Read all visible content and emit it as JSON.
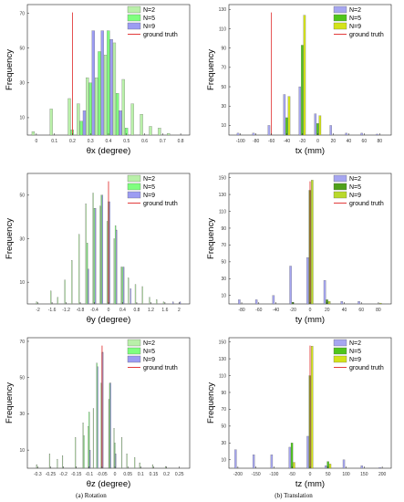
{
  "captions": {
    "left": "(a) Rotation",
    "right": "(b) Translation"
  },
  "chart_data": [
    {
      "type": "bar",
      "xlabel": "θx (degree)",
      "ylabel": "Frequency",
      "xlim": [
        -0.05,
        0.85
      ],
      "ylim": [
        0,
        75
      ],
      "xticks": [
        0,
        0.1,
        0.2,
        0.3,
        0.4,
        0.5,
        0.6,
        0.7,
        0.8
      ],
      "xtick_labels": [
        "0",
        "0.1",
        "0.2",
        "0.3",
        "0.4",
        "0.5",
        "0.6",
        "0.7",
        "0.8"
      ],
      "yticks": [
        10,
        30,
        50,
        70
      ],
      "ytick_labels": [
        "10",
        "30",
        "50",
        "70"
      ],
      "bin_width": 0.05,
      "ground_truth": 0.2,
      "ground_truth_label": "ground truth",
      "series": [
        {
          "name": "N=2",
          "color": "#b9f0a9",
          "x": [
            0,
            0.1,
            0.2,
            0.25,
            0.3,
            0.35,
            0.4,
            0.45,
            0.5,
            0.55,
            0.6,
            0.65,
            0.7,
            0.75,
            0.8
          ],
          "values": [
            2,
            15,
            21,
            18,
            33,
            33,
            46,
            53,
            32,
            18,
            12,
            5,
            4,
            1,
            0
          ]
        },
        {
          "name": "N=5",
          "color": "#7fff7f",
          "x": [
            0.2,
            0.25,
            0.3,
            0.35,
            0.4,
            0.45,
            0.5
          ],
          "values": [
            3,
            8,
            30,
            48,
            60,
            24,
            4
          ]
        },
        {
          "name": "N=9",
          "color": "#9c9cf2",
          "x": [
            0.25,
            0.3,
            0.35,
            0.4,
            0.45
          ],
          "values": [
            14,
            60,
            60,
            55,
            14
          ]
        }
      ]
    },
    {
      "type": "bar",
      "xlabel": "tx  (mm)",
      "ylabel": "Frequency",
      "xlim": [
        -115,
        95
      ],
      "ylim": [
        0,
        135
      ],
      "xticks": [
        -100,
        -80,
        -60,
        -40,
        -20,
        0,
        20,
        40,
        60,
        80
      ],
      "xtick_labels": [
        "-100",
        "-80",
        "-60",
        "-40",
        "-20",
        "0",
        "20",
        "40",
        "60",
        "80"
      ],
      "yticks": [
        10,
        30,
        50,
        70,
        90,
        110,
        130
      ],
      "ytick_labels": [
        "10",
        "30",
        "50",
        "70",
        "90",
        "110",
        "130"
      ],
      "bin_width": 9,
      "ground_truth": -60,
      "ground_truth_label": "ground truth",
      "series": [
        {
          "name": "N=2",
          "color": "#a6a6f0",
          "x": [
            -100,
            -80,
            -60,
            -40,
            -20,
            0,
            20,
            40,
            60,
            80
          ],
          "values": [
            2,
            2,
            10,
            42,
            50,
            22,
            10,
            2,
            2,
            1
          ]
        },
        {
          "name": "N=5",
          "color": "#4fc51c",
          "x": [
            -40,
            -20,
            0
          ],
          "values": [
            18,
            93,
            12
          ]
        },
        {
          "name": "N=9",
          "color": "#d4e31a",
          "x": [
            -40,
            -20,
            0
          ],
          "values": [
            40,
            124,
            20
          ]
        }
      ]
    },
    {
      "type": "bar",
      "xlabel": "θy (degree)",
      "ylabel": "Frequency",
      "xlim": [
        -2.3,
        2.3
      ],
      "ylim": [
        0,
        60
      ],
      "xticks": [
        -2,
        -1.6,
        -1.2,
        -0.8,
        -0.4,
        0,
        0.4,
        0.8,
        1.2,
        1.6,
        2
      ],
      "xtick_labels": [
        "-2",
        "-1.6",
        "-1.2",
        "-0.8",
        "-0.4",
        "0",
        "0.4",
        "0.8",
        "1.2",
        "1.6",
        "2"
      ],
      "yticks": [
        10,
        30,
        50
      ],
      "ytick_labels": [
        "10",
        "30",
        "50"
      ],
      "bin_width": 0.1,
      "ground_truth": 0,
      "ground_truth_label": "ground truth",
      "series": [
        {
          "name": "N=2",
          "color": "#b9f0a9",
          "x": [
            -2,
            -1.6,
            -1.4,
            -1.2,
            -1.0,
            -0.8,
            -0.6,
            -0.4,
            -0.2,
            0,
            0.2,
            0.4,
            0.6,
            0.8,
            1.0,
            1.2,
            1.4,
            1.6
          ],
          "values": [
            1,
            6,
            3,
            11,
            20,
            32,
            46,
            51,
            45,
            38,
            30,
            17,
            12,
            9,
            8,
            3,
            2,
            1
          ]
        },
        {
          "name": "N=5",
          "color": "#7fff7f",
          "x": [
            -0.6,
            -0.4,
            -0.2,
            0,
            0.2,
            0.4
          ],
          "values": [
            28,
            44,
            50,
            47,
            36,
            17
          ]
        },
        {
          "name": "N=9",
          "color": "#9c9cf2",
          "x": [
            -0.6,
            -0.4,
            -0.2,
            0,
            0.2,
            0.4,
            0.6,
            1.8,
            2.0
          ],
          "values": [
            16,
            44,
            50,
            47,
            34,
            17,
            7,
            1,
            1
          ]
        }
      ]
    },
    {
      "type": "bar",
      "xlabel": "ty  (mm)",
      "ylabel": "Frequency",
      "xlim": [
        -95,
        95
      ],
      "ylim": [
        0,
        155
      ],
      "xticks": [
        -80,
        -60,
        -40,
        -20,
        0,
        20,
        40,
        60,
        80
      ],
      "xtick_labels": [
        "-80",
        "-60",
        "-40",
        "-20",
        "0",
        "20",
        "40",
        "60",
        "80"
      ],
      "yticks": [
        10,
        30,
        50,
        70,
        90,
        110,
        130,
        150
      ],
      "ytick_labels": [
        "10",
        "30",
        "50",
        "70",
        "90",
        "110",
        "130",
        "150"
      ],
      "bin_width": 8,
      "ground_truth": 0,
      "ground_truth_label": "ground truth",
      "series": [
        {
          "name": "N=2",
          "color": "#a6a6f0",
          "x": [
            -80,
            -60,
            -40,
            -20,
            0,
            20,
            40,
            60
          ],
          "values": [
            5,
            5,
            10,
            45,
            55,
            28,
            3,
            3
          ]
        },
        {
          "name": "N=5",
          "color": "#4fa01a",
          "x": [
            -20,
            0,
            20
          ],
          "values": [
            2,
            135,
            5
          ]
        },
        {
          "name": "N=9",
          "color": "#b9d92b",
          "x": [
            0,
            20,
            80
          ],
          "values": [
            147,
            3,
            1
          ]
        }
      ]
    },
    {
      "type": "bar",
      "xlabel": "θz (degree)",
      "ylabel": "Frequency",
      "xlim": [
        -0.34,
        0.29
      ],
      "ylim": [
        0,
        72
      ],
      "xticks": [
        -0.3,
        -0.25,
        -0.2,
        -0.15,
        -0.1,
        -0.05,
        0,
        0.05,
        0.1,
        0.15,
        0.2,
        0.25
      ],
      "xtick_labels": [
        "-0.3",
        "-0.25",
        "-0.2",
        "-0.15",
        "-0.1",
        "-0.05",
        "0",
        "0.05",
        "0.1",
        "0.15",
        "0.2",
        "0.25"
      ],
      "yticks": [
        10,
        30,
        50,
        70
      ],
      "ytick_labels": [
        "10",
        "30",
        "50",
        "70"
      ],
      "bin_width": 0.01,
      "ground_truth": -0.05,
      "ground_truth_label": "ground truth",
      "series": [
        {
          "name": "N=2",
          "color": "#b9f0a9",
          "x": [
            -0.3,
            -0.25,
            -0.22,
            -0.2,
            -0.15,
            -0.12,
            -0.1,
            -0.08,
            -0.05,
            -0.02,
            0,
            0.03,
            0.05,
            0.08,
            0.1,
            0.15,
            0.2
          ],
          "values": [
            2,
            8,
            5,
            7,
            17,
            25,
            23,
            33,
            47,
            38,
            22,
            17,
            8,
            6,
            3,
            2,
            1
          ]
        },
        {
          "name": "N=5",
          "color": "#7fff7f",
          "x": [
            -0.12,
            -0.1,
            -0.07,
            -0.05,
            -0.02,
            0
          ],
          "values": [
            18,
            31,
            58,
            64,
            47,
            14
          ]
        },
        {
          "name": "N=9",
          "color": "#9c9cf2",
          "x": [
            -0.1,
            -0.07,
            -0.05,
            -0.02,
            0
          ],
          "values": [
            10,
            56,
            64,
            47,
            8
          ]
        }
      ]
    },
    {
      "type": "bar",
      "xlabel": "tz  (mm)",
      "ylabel": "Frequency",
      "xlim": [
        -225,
        225
      ],
      "ylim": [
        0,
        155
      ],
      "xticks": [
        -200,
        -150,
        -100,
        -50,
        0,
        50,
        100,
        150,
        200
      ],
      "xtick_labels": [
        "-200",
        "-150",
        "-100",
        "-50",
        "0",
        "50",
        "100",
        "150",
        "200"
      ],
      "yticks": [
        10,
        30,
        50,
        70,
        90,
        110,
        130,
        150
      ],
      "ytick_labels": [
        "10",
        "30",
        "50",
        "70",
        "90",
        "110",
        "130",
        "150"
      ],
      "bin_width": 18,
      "ground_truth": 0,
      "ground_truth_label": "ground truth",
      "series": [
        {
          "name": "N=2",
          "color": "#a6a6f0",
          "x": [
            -200,
            -150,
            -100,
            -50,
            0,
            50,
            100,
            150,
            200
          ],
          "values": [
            22,
            16,
            16,
            25,
            38,
            3,
            10,
            3,
            1
          ]
        },
        {
          "name": "N=5",
          "color": "#4fc51c",
          "x": [
            -50,
            0,
            50
          ],
          "values": [
            30,
            110,
            8
          ]
        },
        {
          "name": "N=9",
          "color": "#d4e31a",
          "x": [
            -50,
            0,
            50
          ],
          "values": [
            7,
            145,
            5
          ]
        }
      ]
    }
  ]
}
